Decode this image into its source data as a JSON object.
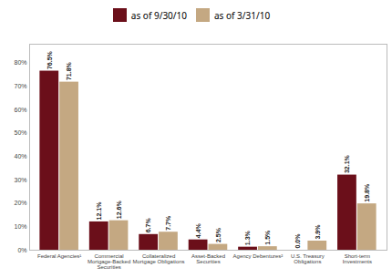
{
  "chart_data": {
    "type": "bar",
    "categories": [
      "Federal Agencies¹",
      "Commercial\nMortgage-Backed\nSecurities",
      "Collateralized\nMortgage Obligations",
      "Asset-Backed\nSecurities",
      "Agency Debentures²",
      "U.S. Treasury\nObligations",
      "Short-term\nInvestments"
    ],
    "series": [
      {
        "name": "as of 9/30/10",
        "color": "#6B0F1A",
        "values": [
          76.5,
          12.1,
          6.7,
          4.4,
          1.3,
          0.0,
          32.1
        ],
        "value_labels": [
          "76.5%",
          "12.1%",
          "6.7%",
          "4.4%",
          "1.3%",
          "0.0%",
          "32.1%"
        ]
      },
      {
        "name": "as of 3/31/10",
        "color": "#C4A882",
        "values": [
          71.8,
          12.6,
          7.7,
          2.5,
          1.5,
          3.9,
          19.8
        ],
        "value_labels": [
          "71.8%",
          "12.6%",
          "7.7%",
          "2.5%",
          "1.5%",
          "3.9%",
          "19.8%"
        ]
      }
    ],
    "ylim": [
      0,
      88
    ],
    "yticks": [
      {
        "value": 0,
        "label": "0%"
      },
      {
        "value": 10,
        "label": "10%"
      },
      {
        "value": 20,
        "label": "20%"
      },
      {
        "value": 30,
        "label": "30%"
      },
      {
        "value": 40,
        "label": "40%"
      },
      {
        "value": 50,
        "label": "50%"
      },
      {
        "value": 60,
        "label": "60%"
      },
      {
        "value": 70,
        "label": "70%"
      },
      {
        "value": 80,
        "label": "80%"
      }
    ],
    "data_labels": true,
    "legend": "top",
    "grid": false
  }
}
